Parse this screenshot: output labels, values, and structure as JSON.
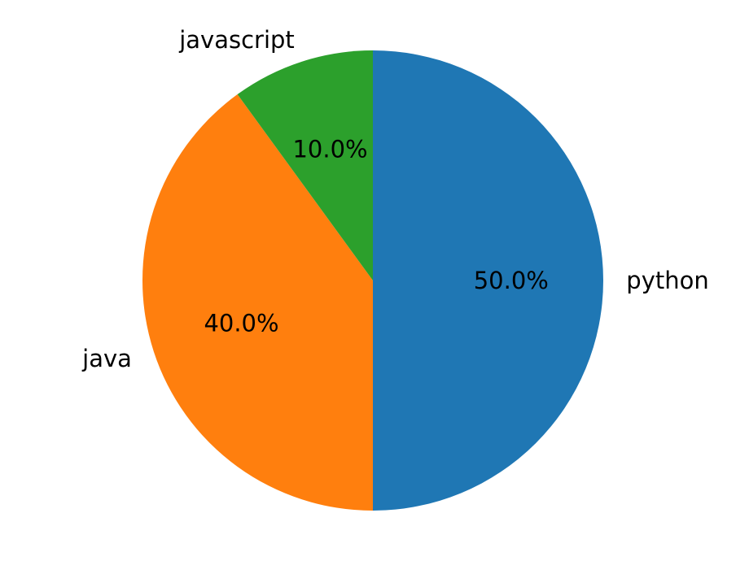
{
  "chart_data": {
    "type": "pie",
    "categories": [
      "python",
      "java",
      "javascript"
    ],
    "values": [
      50.0,
      40.0,
      10.0
    ],
    "percent_labels": [
      "50.0%",
      "40.0%",
      "10.0%"
    ],
    "colors": [
      "#1f77b4",
      "#ff7f0e",
      "#2ca02c"
    ],
    "start_angle_deg": 90,
    "direction": "clockwise",
    "title": ""
  }
}
